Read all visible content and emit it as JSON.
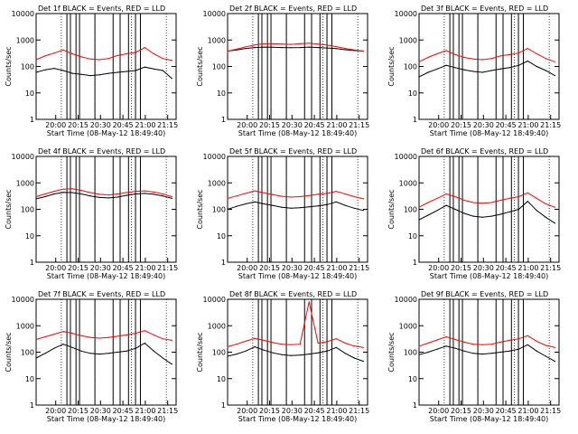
{
  "colors": {
    "events": "#000000",
    "lld": "#ff0000",
    "axis": "#000000"
  },
  "chart_data": [
    {
      "type": "line",
      "title": "Det 1f BLACK = Events, RED = LLD",
      "xlabel": "Start Time (08-May-12 18:49:40)",
      "ylabel": "Counts/sec",
      "x_ticks": [
        "20:00",
        "20:15",
        "20:30",
        "20:45",
        "21:00",
        "21:15"
      ],
      "y_ticks": [
        "1",
        "10",
        "100",
        "1000",
        "10000"
      ],
      "log_y": true,
      "xlim_min": [
        0,
        100
      ],
      "ylim": [
        1,
        10000
      ],
      "series": [
        {
          "name": "Events",
          "values": [
            60,
            75,
            85,
            70,
            55,
            50,
            45,
            48,
            55,
            60,
            65,
            70,
            95,
            80,
            70,
            35
          ]
        },
        {
          "name": "LLD",
          "values": [
            180,
            250,
            320,
            420,
            300,
            230,
            190,
            180,
            200,
            260,
            300,
            340,
            520,
            300,
            200,
            170
          ]
        }
      ]
    },
    {
      "type": "line",
      "title": "Det 2f BLACK = Events, RED = LLD",
      "xlabel": "Start Time (08-May-12 18:49:40)",
      "ylabel": "Counts/sec",
      "x_ticks": [
        "20:00",
        "20:15",
        "20:30",
        "20:45",
        "21:00",
        "21:15"
      ],
      "y_ticks": [
        "1",
        "10",
        "100",
        "1000",
        "10000"
      ],
      "log_y": true,
      "xlim_min": [
        0,
        100
      ],
      "ylim": [
        1,
        10000
      ],
      "series": [
        {
          "name": "Events",
          "values": [
            380,
            420,
            480,
            520,
            540,
            530,
            520,
            510,
            520,
            540,
            520,
            500,
            470,
            430,
            400,
            380
          ]
        },
        {
          "name": "LLD",
          "values": [
            380,
            450,
            550,
            650,
            720,
            720,
            700,
            680,
            720,
            760,
            700,
            640,
            560,
            480,
            420,
            380
          ]
        }
      ]
    },
    {
      "type": "line",
      "title": "Det 3f BLACK = Events, RED = LLD",
      "xlabel": "Start Time (08-May-12 18:49:40)",
      "ylabel": "Counts/sec",
      "x_ticks": [
        "20:00",
        "20:15",
        "20:30",
        "20:45",
        "21:00",
        "21:15"
      ],
      "y_ticks": [
        "1",
        "10",
        "100",
        "1000",
        "10000"
      ],
      "log_y": true,
      "xlim_min": [
        0,
        100
      ],
      "ylim": [
        1,
        10000
      ],
      "series": [
        {
          "name": "Events",
          "values": [
            40,
            60,
            80,
            110,
            90,
            75,
            65,
            60,
            70,
            80,
            90,
            110,
            160,
            100,
            70,
            45
          ]
        },
        {
          "name": "LLD",
          "values": [
            150,
            220,
            300,
            400,
            280,
            220,
            190,
            180,
            200,
            250,
            280,
            320,
            480,
            300,
            200,
            150
          ]
        }
      ]
    },
    {
      "type": "line",
      "title": "Det 4f BLACK = Events, RED = LLD",
      "xlabel": "Start Time (08-May-12 18:49:40)",
      "ylabel": "Counts/sec",
      "x_ticks": [
        "20:00",
        "20:15",
        "20:30",
        "20:45",
        "21:00",
        "21:15"
      ],
      "y_ticks": [
        "1",
        "10",
        "100",
        "1000",
        "10000"
      ],
      "log_y": true,
      "xlim_min": [
        0,
        100
      ],
      "ylim": [
        1,
        10000
      ],
      "series": [
        {
          "name": "Events",
          "values": [
            250,
            300,
            380,
            440,
            430,
            380,
            320,
            280,
            270,
            290,
            340,
            380,
            400,
            370,
            320,
            260
          ]
        },
        {
          "name": "LLD",
          "values": [
            300,
            380,
            480,
            580,
            600,
            520,
            430,
            370,
            350,
            380,
            430,
            480,
            500,
            450,
            380,
            300
          ]
        }
      ]
    },
    {
      "type": "line",
      "title": "Det 5f BLACK = Events, RED = LLD",
      "xlabel": "Start Time (08-May-12 18:49:40)",
      "ylabel": "Counts/sec",
      "x_ticks": [
        "20:00",
        "20:15",
        "20:30",
        "20:45",
        "21:00",
        "21:15"
      ],
      "y_ticks": [
        "1",
        "10",
        "100",
        "1000",
        "10000"
      ],
      "log_y": true,
      "xlim_min": [
        0,
        100
      ],
      "ylim": [
        1,
        10000
      ],
      "series": [
        {
          "name": "Events",
          "values": [
            100,
            130,
            160,
            190,
            160,
            140,
            120,
            110,
            115,
            125,
            135,
            150,
            190,
            140,
            110,
            90
          ]
        },
        {
          "name": "LLD",
          "values": [
            260,
            320,
            400,
            500,
            420,
            360,
            310,
            290,
            300,
            330,
            370,
            400,
            480,
            380,
            300,
            250
          ]
        }
      ]
    },
    {
      "type": "line",
      "title": "Det 6f BLACK = Events, RED = LLD",
      "xlabel": "Start Time (08-May-12 18:49:40)",
      "ylabel": "Counts/sec",
      "x_ticks": [
        "20:00",
        "20:15",
        "20:30",
        "20:45",
        "21:00",
        "21:15"
      ],
      "y_ticks": [
        "1",
        "10",
        "100",
        "1000",
        "10000"
      ],
      "log_y": true,
      "xlim_min": [
        0,
        100
      ],
      "ylim": [
        1,
        10000
      ],
      "series": [
        {
          "name": "Events",
          "values": [
            40,
            60,
            90,
            140,
            100,
            70,
            55,
            50,
            55,
            65,
            80,
            100,
            200,
            90,
            50,
            30
          ]
        },
        {
          "name": "LLD",
          "values": [
            120,
            180,
            260,
            380,
            300,
            220,
            180,
            170,
            180,
            220,
            260,
            300,
            420,
            260,
            160,
            120
          ]
        }
      ]
    },
    {
      "type": "line",
      "title": "Det 7f BLACK = Events, RED = LLD",
      "xlabel": "Start Time (08-May-12 18:49:40)",
      "ylabel": "Counts/sec",
      "x_ticks": [
        "20:00",
        "20:15",
        "20:30",
        "20:45",
        "21:00",
        "21:15"
      ],
      "y_ticks": [
        "1",
        "10",
        "100",
        "1000",
        "10000"
      ],
      "log_y": true,
      "xlim_min": [
        0,
        100
      ],
      "ylim": [
        1,
        10000
      ],
      "series": [
        {
          "name": "Events",
          "values": [
            60,
            90,
            140,
            200,
            150,
            110,
            90,
            85,
            90,
            100,
            110,
            140,
            220,
            110,
            60,
            35
          ]
        },
        {
          "name": "LLD",
          "values": [
            300,
            380,
            480,
            600,
            520,
            420,
            360,
            340,
            360,
            400,
            450,
            520,
            650,
            450,
            320,
            280
          ]
        }
      ]
    },
    {
      "type": "line",
      "title": "Det 8f BLACK = Events, RED = LLD",
      "xlabel": "Start Time (08-May-12 18:49:40)",
      "ylabel": "Counts/sec",
      "x_ticks": [
        "20:00",
        "20:15",
        "20:30",
        "20:45",
        "21:00",
        "21:15"
      ],
      "y_ticks": [
        "1",
        "10",
        "100",
        "1000",
        "10000"
      ],
      "log_y": true,
      "xlim_min": [
        0,
        100
      ],
      "ylim": [
        1,
        10000
      ],
      "series": [
        {
          "name": "Events",
          "values": [
            70,
            85,
            110,
            160,
            120,
            95,
            80,
            75,
            78,
            85,
            95,
            110,
            150,
            90,
            60,
            45
          ]
        },
        {
          "name": "LLD",
          "values": [
            160,
            200,
            260,
            330,
            280,
            230,
            200,
            190,
            200,
            8000,
            220,
            250,
            320,
            220,
            170,
            150
          ]
        }
      ]
    },
    {
      "type": "line",
      "title": "Det 9f BLACK = Events, RED = LLD",
      "xlabel": "Start Time (08-May-12 18:49:40)",
      "ylabel": "Counts/sec",
      "x_ticks": [
        "20:00",
        "20:15",
        "20:30",
        "20:45",
        "21:00",
        "21:15"
      ],
      "y_ticks": [
        "1",
        "10",
        "100",
        "1000",
        "10000"
      ],
      "log_y": true,
      "xlim_min": [
        0,
        100
      ],
      "ylim": [
        1,
        10000
      ],
      "series": [
        {
          "name": "Events",
          "values": [
            80,
            100,
            130,
            170,
            140,
            110,
            90,
            85,
            90,
            100,
            110,
            130,
            190,
            110,
            70,
            45
          ]
        },
        {
          "name": "LLD",
          "values": [
            170,
            220,
            290,
            380,
            300,
            240,
            200,
            190,
            200,
            240,
            280,
            320,
            420,
            260,
            180,
            150
          ]
        }
      ]
    }
  ]
}
